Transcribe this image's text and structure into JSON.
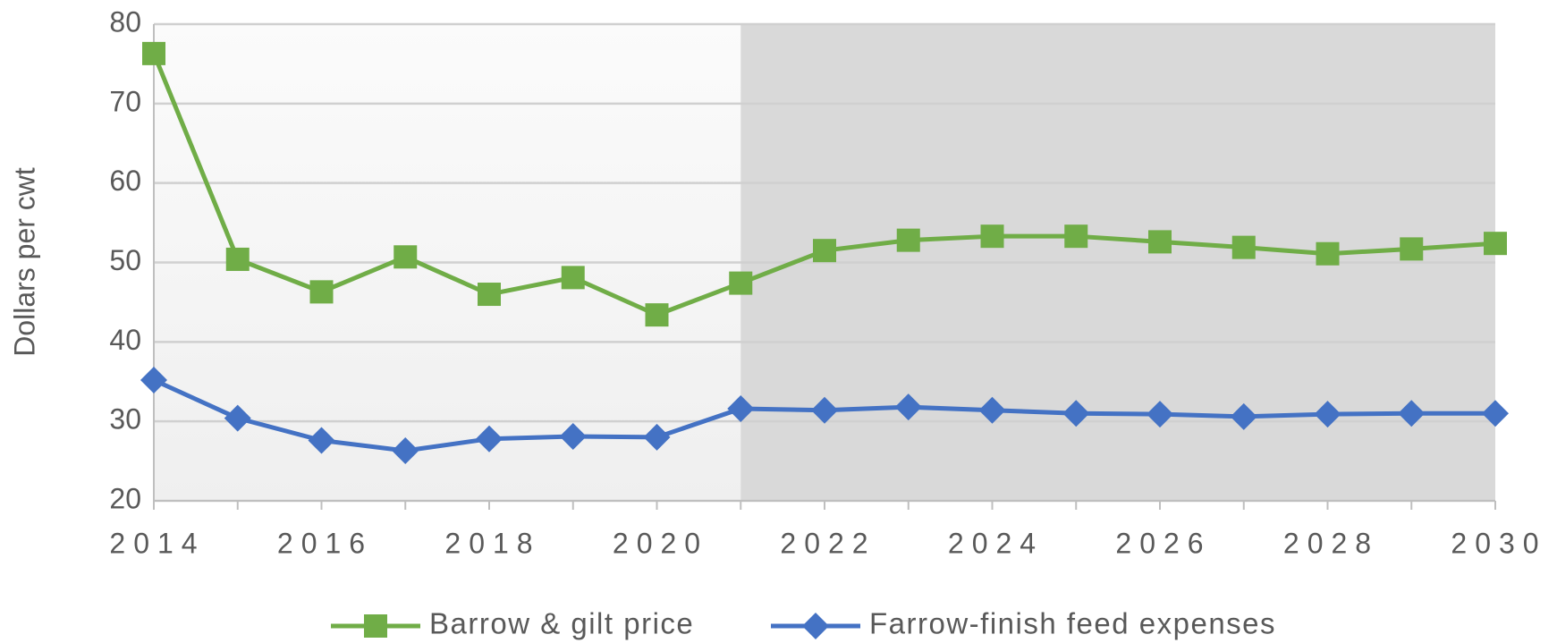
{
  "chart_data": {
    "type": "line",
    "y_label": "Dollars per cwt",
    "x": [
      2014,
      2015,
      2016,
      2017,
      2018,
      2019,
      2020,
      2021,
      2022,
      2023,
      2024,
      2025,
      2026,
      2027,
      2028,
      2029,
      2030
    ],
    "series": [
      {
        "name": "Barrow & gilt price",
        "color": "#70ad47",
        "marker": "square",
        "values": [
          76.3,
          50.4,
          46.3,
          50.7,
          46.0,
          48.1,
          43.4,
          47.4,
          51.5,
          52.8,
          53.3,
          53.3,
          52.6,
          51.9,
          51.1,
          51.7,
          52.4
        ]
      },
      {
        "name": "Farrow-finish feed expenses",
        "color": "#4472c4",
        "marker": "diamond",
        "values": [
          35.2,
          30.4,
          27.6,
          26.3,
          27.8,
          28.1,
          28.0,
          31.6,
          31.4,
          31.8,
          31.4,
          31.0,
          30.9,
          30.6,
          30.9,
          31.0,
          31.0
        ]
      }
    ],
    "xlim": [
      2014,
      2030
    ],
    "xticks": [
      2014,
      2016,
      2018,
      2020,
      2022,
      2024,
      2026,
      2028,
      2030
    ],
    "ylim": [
      20,
      80
    ],
    "yticks": [
      20,
      30,
      40,
      50,
      60,
      70,
      80
    ],
    "grid": true,
    "highlight_x": [
      2021,
      2030
    ],
    "legend": "bottom"
  }
}
